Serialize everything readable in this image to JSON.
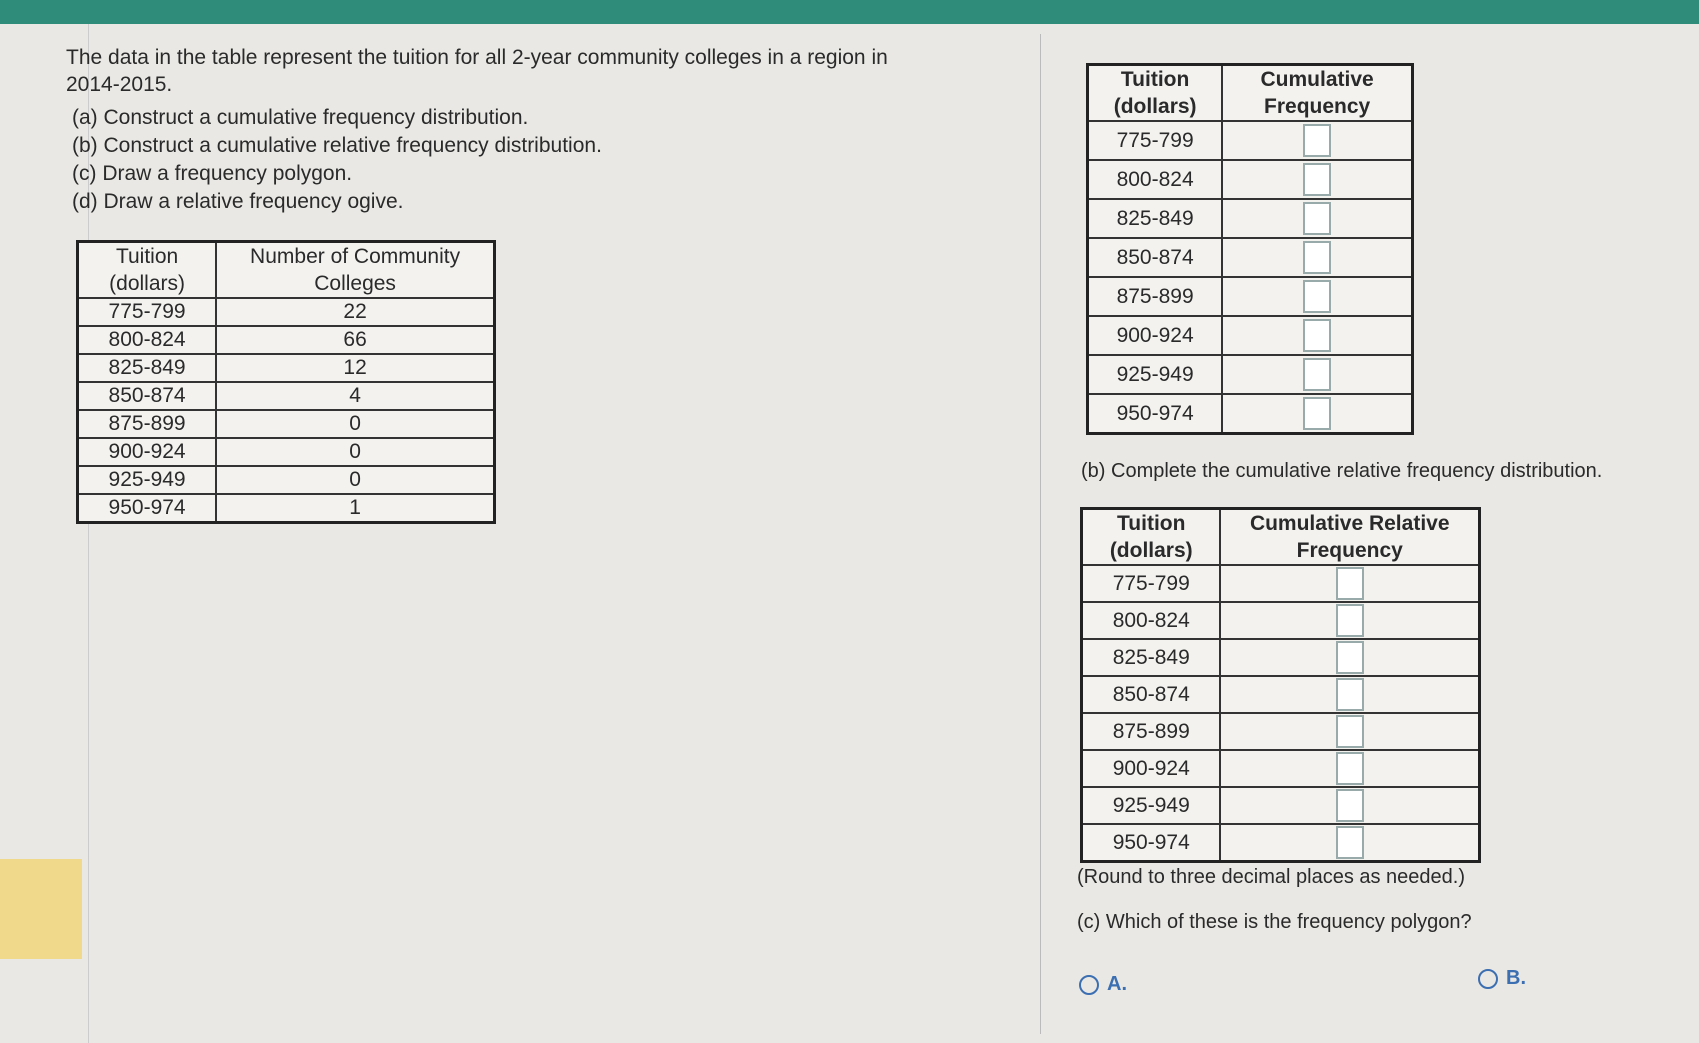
{
  "question": {
    "intro": "The data in the table represent the tuition for all 2-year community colleges in a region in 2014-2015.",
    "parts": [
      "(a) Construct a cumulative frequency distribution.",
      "(b) Construct a cumulative relative frequency distribution.",
      "(c) Draw a frequency polygon.",
      "(d) Draw a relative frequency ogive."
    ]
  },
  "data_table": {
    "headers": [
      "Tuition (dollars)",
      "Number of Community Colleges"
    ],
    "rows": [
      [
        "775-799",
        22
      ],
      [
        "800-824",
        66
      ],
      [
        "825-849",
        12
      ],
      [
        "850-874",
        4
      ],
      [
        "875-899",
        0
      ],
      [
        "900-924",
        0
      ],
      [
        "925-949",
        0
      ],
      [
        "950-974",
        1
      ]
    ]
  },
  "cf_table": {
    "headers": [
      "Tuition (dollars)",
      "Cumulative Frequency"
    ],
    "rows": [
      "775-799",
      "800-824",
      "825-849",
      "850-874",
      "875-899",
      "900-924",
      "925-949",
      "950-974"
    ]
  },
  "part_b": {
    "prompt": "(b) Complete the cumulative relative frequency distribution.",
    "headers": [
      "Tuition (dollars)",
      "Cumulative Relative Frequency"
    ],
    "rows": [
      "775-799",
      "800-824",
      "825-849",
      "850-874",
      "875-899",
      "900-924",
      "925-949",
      "950-974"
    ],
    "note": "(Round to three decimal places as needed.)"
  },
  "part_c": {
    "prompt": "(c) Which of these is the frequency polygon?",
    "options": [
      "A.",
      "B."
    ]
  }
}
